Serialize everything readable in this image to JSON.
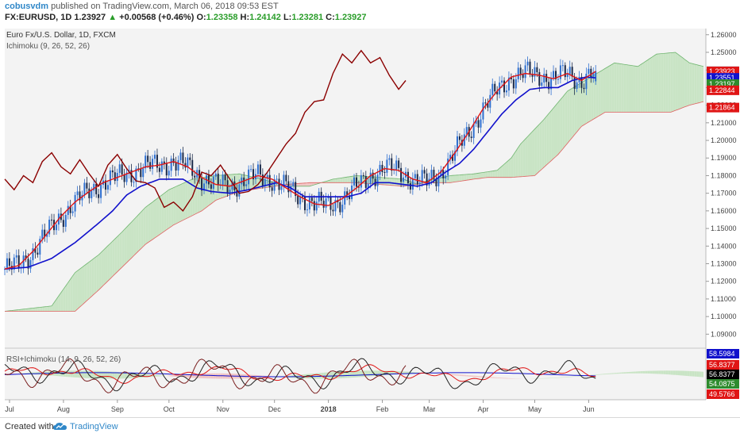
{
  "header": {
    "author": "cobusvdm",
    "published_text": "published on TradingView.com, March 06, 2018 09:53 EST",
    "symbol": "FX:EURUSD, 1D",
    "last": "1.23927",
    "change_arrow": "▲",
    "change": "+0.00568 (+0.46%)",
    "o_label": "O:",
    "o_value": "1.23358",
    "h_label": "H:",
    "h_value": "1.24142",
    "l_label": "L:",
    "l_value": "1.23281",
    "c_label": "C:",
    "c_value": "1.23927"
  },
  "colors": {
    "background": "#f3f3f3",
    "up_candle": "#2e6fd0",
    "down_candle": "#1a2a4a",
    "tenkan": "#e01515",
    "kijun": "#1111cc",
    "chikou": "#8b0000",
    "cloud_bull_fill": "#c9e4c5",
    "cloud_bear_fill": "#f1c6c6",
    "span_a": "#6fb56f",
    "span_b": "#e06060",
    "rsi_line": "#222222",
    "rsi_chikou": "#7a1f1f"
  },
  "chart_data": [
    {
      "type": "candlestick",
      "title": "Euro Fx/U.S. Dollar, 1D, FXCM",
      "indicator": "Ichimoku (9, 26, 52, 26)",
      "xlabel": "",
      "ylabel": "",
      "x_ticks": [
        "Jul",
        "Aug",
        "Sep",
        "Oct",
        "Nov",
        "Dec",
        "2018",
        "Feb",
        "Mar",
        "Apr",
        "May",
        "Jun"
      ],
      "y_ticks": [
        "1.26000",
        "1.25000",
        "1.24000",
        "1.23000",
        "1.22000",
        "1.21000",
        "1.20000",
        "1.19000",
        "1.18000",
        "1.17000",
        "1.16000",
        "1.15000",
        "1.14000",
        "1.13000",
        "1.12000",
        "1.11000",
        "1.10000",
        "1.09000"
      ],
      "ylim": [
        1.0825,
        1.2635
      ],
      "grid": false,
      "price_labels": [
        {
          "value": "1.23927",
          "color": "#5b9bd5"
        },
        {
          "value": "1.23923",
          "color": "#e01515"
        },
        {
          "value": "1.23551",
          "color": "#1111cc"
        },
        {
          "value": "1.23197",
          "color": "#2e8b2e"
        },
        {
          "value": "1.22844",
          "color": "#e01515"
        },
        {
          "value": "1.21864",
          "color": "#e01515"
        }
      ],
      "series": [
        {
          "name": "Tenkan",
          "anchors": [
            [
              0,
              1.127
            ],
            [
              6,
              1.129
            ],
            [
              12,
              1.137
            ],
            [
              18,
              1.147
            ],
            [
              24,
              1.157
            ],
            [
              30,
              1.165
            ],
            [
              36,
              1.171
            ],
            [
              42,
              1.176
            ],
            [
              48,
              1.179
            ],
            [
              54,
              1.182
            ],
            [
              60,
              1.185
            ],
            [
              66,
              1.186
            ],
            [
              72,
              1.188
            ],
            [
              78,
              1.185
            ],
            [
              84,
              1.179
            ],
            [
              90,
              1.175
            ],
            [
              96,
              1.174
            ],
            [
              102,
              1.177
            ],
            [
              108,
              1.18
            ],
            [
              114,
              1.178
            ],
            [
              120,
              1.173
            ],
            [
              126,
              1.168
            ],
            [
              132,
              1.164
            ],
            [
              138,
              1.163
            ],
            [
              144,
              1.167
            ],
            [
              150,
              1.173
            ],
            [
              156,
              1.18
            ],
            [
              162,
              1.184
            ],
            [
              168,
              1.183
            ],
            [
              174,
              1.178
            ],
            [
              180,
              1.176
            ],
            [
              186,
              1.182
            ],
            [
              192,
              1.193
            ],
            [
              198,
              1.205
            ],
            [
              204,
              1.218
            ],
            [
              210,
              1.228
            ],
            [
              216,
              1.236
            ],
            [
              222,
              1.238
            ],
            [
              228,
              1.237
            ],
            [
              234,
              1.235
            ],
            [
              240,
              1.238
            ],
            [
              246,
              1.234
            ],
            [
              252,
              1.2392
            ]
          ]
        },
        {
          "name": "Kijun",
          "anchors": [
            [
              0,
              1.127
            ],
            [
              10,
              1.128
            ],
            [
              20,
              1.133
            ],
            [
              30,
              1.142
            ],
            [
              40,
              1.153
            ],
            [
              46,
              1.16
            ],
            [
              52,
              1.169
            ],
            [
              58,
              1.174
            ],
            [
              66,
              1.178
            ],
            [
              76,
              1.178
            ],
            [
              82,
              1.173
            ],
            [
              88,
              1.171
            ],
            [
              96,
              1.17
            ],
            [
              104,
              1.172
            ],
            [
              110,
              1.174
            ],
            [
              116,
              1.176
            ],
            [
              122,
              1.173
            ],
            [
              128,
              1.168
            ],
            [
              134,
              1.168
            ],
            [
              140,
              1.168
            ],
            [
              146,
              1.168
            ],
            [
              152,
              1.17
            ],
            [
              158,
              1.176
            ],
            [
              164,
              1.176
            ],
            [
              170,
              1.175
            ],
            [
              176,
              1.174
            ],
            [
              182,
              1.176
            ],
            [
              188,
              1.182
            ],
            [
              194,
              1.187
            ],
            [
              200,
              1.195
            ],
            [
              206,
              1.205
            ],
            [
              212,
              1.215
            ],
            [
              218,
              1.223
            ],
            [
              224,
              1.229
            ],
            [
              230,
              1.23
            ],
            [
              236,
              1.23
            ],
            [
              242,
              1.234
            ],
            [
              248,
              1.236
            ],
            [
              252,
              1.2355
            ]
          ]
        },
        {
          "name": "Chikou",
          "anchors": [
            [
              0,
              1.178
            ],
            [
              4,
              1.172
            ],
            [
              8,
              1.18
            ],
            [
              12,
              1.176
            ],
            [
              16,
              1.188
            ],
            [
              20,
              1.193
            ],
            [
              24,
              1.185
            ],
            [
              28,
              1.181
            ],
            [
              32,
              1.189
            ],
            [
              36,
              1.181
            ],
            [
              40,
              1.174
            ],
            [
              44,
              1.186
            ],
            [
              48,
              1.192
            ],
            [
              52,
              1.184
            ],
            [
              56,
              1.177
            ],
            [
              60,
              1.176
            ],
            [
              64,
              1.173
            ],
            [
              68,
              1.162
            ],
            [
              72,
              1.165
            ],
            [
              76,
              1.16
            ],
            [
              80,
              1.168
            ],
            [
              84,
              1.182
            ],
            [
              88,
              1.18
            ],
            [
              92,
              1.186
            ],
            [
              96,
              1.178
            ],
            [
              100,
              1.17
            ],
            [
              104,
              1.171
            ],
            [
              108,
              1.175
            ],
            [
              112,
              1.182
            ],
            [
              116,
              1.19
            ],
            [
              120,
              1.198
            ],
            [
              124,
              1.204
            ],
            [
              128,
              1.216
            ],
            [
              132,
              1.222
            ],
            [
              136,
              1.223
            ],
            [
              140,
              1.238
            ],
            [
              144,
              1.249
            ],
            [
              148,
              1.244
            ],
            [
              152,
              1.251
            ],
            [
              156,
              1.244
            ],
            [
              160,
              1.247
            ],
            [
              164,
              1.237
            ],
            [
              168,
              1.229
            ],
            [
              171,
              1.234
            ]
          ]
        },
        {
          "name": "Senkou Span A",
          "anchors": [
            [
              0,
              1.103
            ],
            [
              20,
              1.106
            ],
            [
              30,
              1.125
            ],
            [
              40,
              1.135
            ],
            [
              50,
              1.148
            ],
            [
              60,
              1.162
            ],
            [
              70,
              1.172
            ],
            [
              80,
              1.178
            ],
            [
              90,
              1.18
            ],
            [
              100,
              1.181
            ],
            [
              110,
              1.178
            ],
            [
              120,
              1.174
            ],
            [
              130,
              1.174
            ],
            [
              140,
              1.178
            ],
            [
              150,
              1.18
            ],
            [
              160,
              1.179
            ],
            [
              170,
              1.178
            ],
            [
              176,
              1.175
            ],
            [
              180,
              1.177
            ],
            [
              190,
              1.18
            ],
            [
              200,
              1.181
            ],
            [
              210,
              1.183
            ],
            [
              216,
              1.19
            ],
            [
              220,
              1.198
            ],
            [
              230,
              1.212
            ],
            [
              240,
              1.228
            ],
            [
              250,
              1.236
            ],
            [
              260,
              1.244
            ],
            [
              270,
              1.242
            ],
            [
              278,
              1.249
            ],
            [
              286,
              1.25
            ],
            [
              292,
              1.244
            ],
            [
              298,
              1.242
            ]
          ]
        },
        {
          "name": "Senkou Span B",
          "anchors": [
            [
              0,
              1.103
            ],
            [
              30,
              1.103
            ],
            [
              40,
              1.115
            ],
            [
              60,
              1.141
            ],
            [
              72,
              1.152
            ],
            [
              84,
              1.16
            ],
            [
              90,
              1.166
            ],
            [
              100,
              1.171
            ],
            [
              110,
              1.173
            ],
            [
              120,
              1.175
            ],
            [
              130,
              1.176
            ],
            [
              140,
              1.176
            ],
            [
              150,
              1.176
            ],
            [
              160,
              1.175
            ],
            [
              170,
              1.174
            ],
            [
              180,
              1.176
            ],
            [
              190,
              1.176
            ],
            [
              200,
              1.178
            ],
            [
              206,
              1.179
            ],
            [
              216,
              1.179
            ],
            [
              226,
              1.18
            ],
            [
              236,
              1.192
            ],
            [
              246,
              1.208
            ],
            [
              256,
              1.216
            ],
            [
              270,
              1.216
            ],
            [
              284,
              1.216
            ],
            [
              292,
              1.22
            ],
            [
              298,
              1.222
            ]
          ]
        }
      ]
    },
    {
      "type": "line",
      "title": "RSI+Ichimoku (14, 9, 26, 52, 26)",
      "xlabel": "",
      "ylabel": "",
      "y_ticks": [],
      "grid": false,
      "price_labels": [
        {
          "value": "58.5984",
          "color": "#1111cc"
        },
        {
          "value": "56.8377",
          "color": "#e01515"
        },
        {
          "value": "56.8377",
          "color": "#000000"
        },
        {
          "value": "54.0875",
          "color": "#2e8b2e"
        },
        {
          "value": "49.5766",
          "color": "#e01515"
        }
      ]
    }
  ],
  "footer": {
    "created_with": "Created with",
    "brand": "TradingView"
  }
}
